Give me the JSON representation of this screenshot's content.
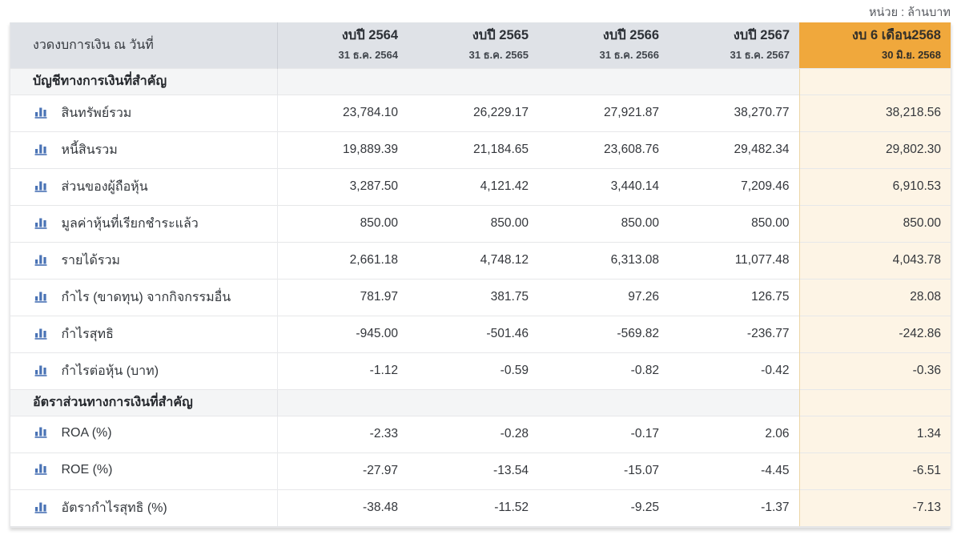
{
  "unit_note": "หน่วย : ล้านบาท",
  "colors": {
    "accent_orange": "#f0a83c",
    "highlight_column_bg": "#fdf4e5",
    "header_bg": "#dfe2e7",
    "section_row_bg": "#f4f5f6",
    "icon_blue": "#4a73b5"
  },
  "icons": {
    "row_icon": "bar-chart-icon"
  },
  "table": {
    "header": {
      "label": "งวดงบการเงิน ณ วันที่",
      "columns": [
        {
          "title": "งบปี 2564",
          "subtitle": "31 ธ.ค. 2564",
          "highlight": false
        },
        {
          "title": "งบปี 2565",
          "subtitle": "31 ธ.ค. 2565",
          "highlight": false
        },
        {
          "title": "งบปี 2566",
          "subtitle": "31 ธ.ค. 2566",
          "highlight": false
        },
        {
          "title": "งบปี 2567",
          "subtitle": "31 ธ.ค. 2567",
          "highlight": false
        },
        {
          "title": "งบ 6 เดือน2568",
          "subtitle": "30 มิ.ย. 2568",
          "highlight": true
        }
      ]
    },
    "sections": [
      {
        "title": "บัญชีทางการเงินที่สำคัญ",
        "rows": [
          {
            "label": "สินทรัพย์รวม",
            "values": [
              "23,784.10",
              "26,229.17",
              "27,921.87",
              "38,270.77",
              "38,218.56"
            ]
          },
          {
            "label": "หนี้สินรวม",
            "values": [
              "19,889.39",
              "21,184.65",
              "23,608.76",
              "29,482.34",
              "29,802.30"
            ]
          },
          {
            "label": "ส่วนของผู้ถือหุ้น",
            "values": [
              "3,287.50",
              "4,121.42",
              "3,440.14",
              "7,209.46",
              "6,910.53"
            ]
          },
          {
            "label": "มูลค่าหุ้นที่เรียกชำระแล้ว",
            "values": [
              "850.00",
              "850.00",
              "850.00",
              "850.00",
              "850.00"
            ]
          },
          {
            "label": "รายได้รวม",
            "values": [
              "2,661.18",
              "4,748.12",
              "6,313.08",
              "11,077.48",
              "4,043.78"
            ]
          },
          {
            "label": "กำไร (ขาดทุน) จากกิจกรรมอื่น",
            "values": [
              "781.97",
              "381.75",
              "97.26",
              "126.75",
              "28.08"
            ]
          },
          {
            "label": "กำไรสุทธิ",
            "values": [
              "-945.00",
              "-501.46",
              "-569.82",
              "-236.77",
              "-242.86"
            ]
          },
          {
            "label": "กำไรต่อหุ้น (บาท)",
            "values": [
              "-1.12",
              "-0.59",
              "-0.82",
              "-0.42",
              "-0.36"
            ]
          }
        ]
      },
      {
        "title": "อัตราส่วนทางการเงินที่สำคัญ",
        "rows": [
          {
            "label": "ROA (%)",
            "values": [
              "-2.33",
              "-0.28",
              "-0.17",
              "2.06",
              "1.34"
            ]
          },
          {
            "label": "ROE (%)",
            "values": [
              "-27.97",
              "-13.54",
              "-15.07",
              "-4.45",
              "-6.51"
            ]
          },
          {
            "label": "อัตรากำไรสุทธิ (%)",
            "values": [
              "-38.48",
              "-11.52",
              "-9.25",
              "-1.37",
              "-7.13"
            ]
          }
        ]
      }
    ]
  }
}
